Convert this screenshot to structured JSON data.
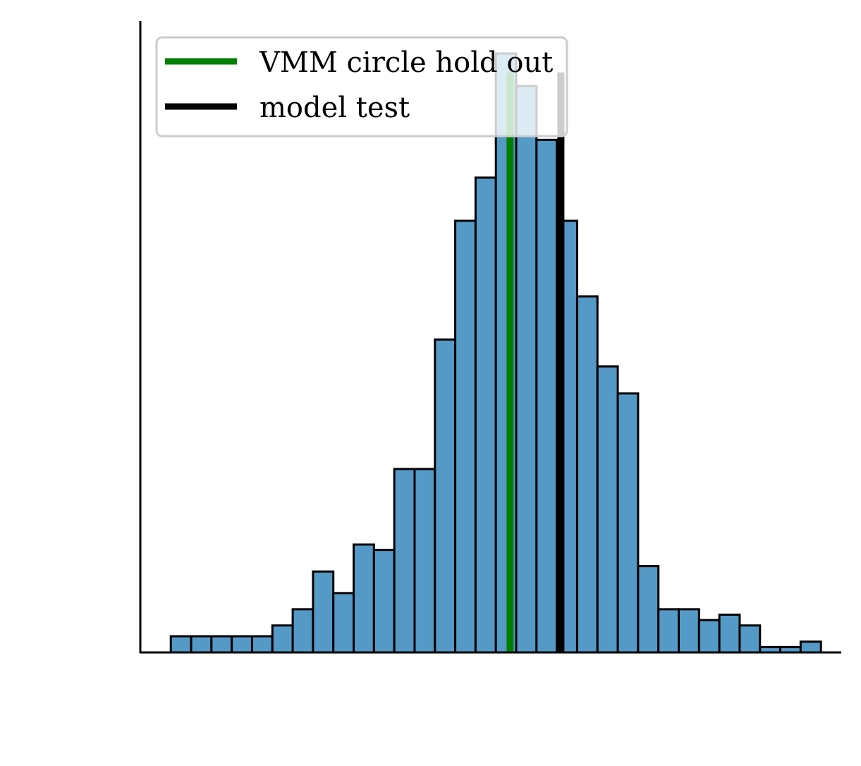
{
  "chart_data": {
    "type": "bar",
    "xlim": [
      0,
      34.5
    ],
    "ylim": [
      0,
      117
    ],
    "bar_values": [
      3,
      3,
      3,
      3,
      3,
      5,
      8,
      15,
      11,
      20,
      19,
      34,
      34,
      58,
      80,
      88,
      111,
      105,
      95,
      80,
      66,
      53,
      48,
      16,
      8,
      8,
      6,
      7,
      5,
      1,
      1,
      2
    ],
    "bar_color": "#5599c7",
    "vlines": [
      {
        "name": "VMM circle hold out",
        "x": 18.2,
        "color": "#008000"
      },
      {
        "name": "model test",
        "x": 20.7,
        "color": "#000000"
      }
    ],
    "legend_position": "upper left",
    "grid": false
  }
}
